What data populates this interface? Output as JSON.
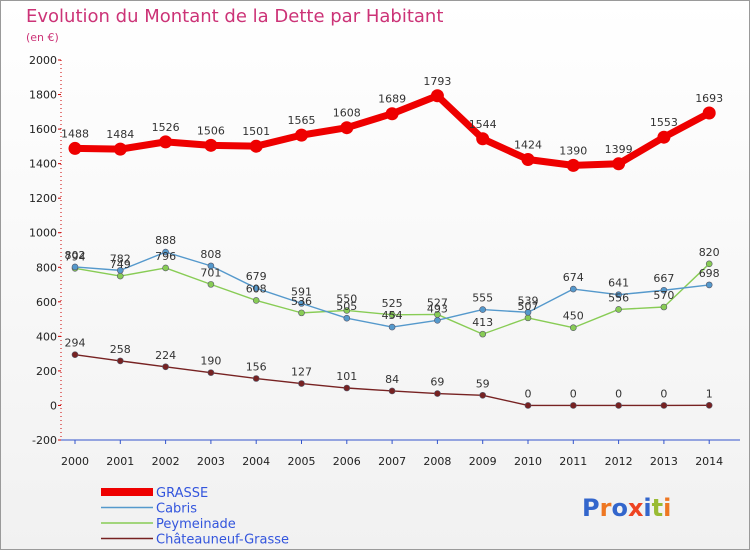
{
  "chart_data": {
    "type": "line",
    "title": "Evolution du Montant de la Dette par Habitant",
    "subtitle": "(en €)",
    "x": [
      "2000",
      "2001",
      "2002",
      "2003",
      "2004",
      "2005",
      "2006",
      "2007",
      "2008",
      "2009",
      "2010",
      "2011",
      "2012",
      "2013",
      "2014"
    ],
    "ylim": [
      -200,
      2000
    ],
    "yticks": [
      -200,
      0,
      200,
      400,
      600,
      800,
      1000,
      1200,
      1400,
      1600,
      1800,
      2000
    ],
    "grid": false,
    "legend_position": "bottom-left",
    "series": [
      {
        "name": "GRASSE",
        "color": "#ee0000",
        "values": [
          1488,
          1484,
          1526,
          1506,
          1501,
          1565,
          1608,
          1689,
          1793,
          1544,
          1424,
          1390,
          1399,
          1553,
          1693
        ]
      },
      {
        "name": "Cabris",
        "color": "#5599cc",
        "values": [
          802,
          782,
          888,
          808,
          679,
          591,
          505,
          454,
          493,
          555,
          539,
          674,
          641,
          667,
          698
        ]
      },
      {
        "name": "Peymeinade",
        "color": "#88cc55",
        "values": [
          794,
          749,
          796,
          701,
          608,
          536,
          550,
          525,
          527,
          413,
          507,
          450,
          556,
          570,
          820
        ]
      },
      {
        "name": "Châteauneuf-Grasse",
        "color": "#772222",
        "values": [
          294,
          258,
          224,
          190,
          156,
          127,
          101,
          84,
          69,
          59,
          0,
          0,
          0,
          0,
          1
        ]
      }
    ]
  },
  "logo": {
    "text": "Proxiti",
    "colors": [
      "#3366cc",
      "#ee7722",
      "#3366cc",
      "#ee4422",
      "#3366cc",
      "#99bb33",
      "#ee7722"
    ]
  }
}
